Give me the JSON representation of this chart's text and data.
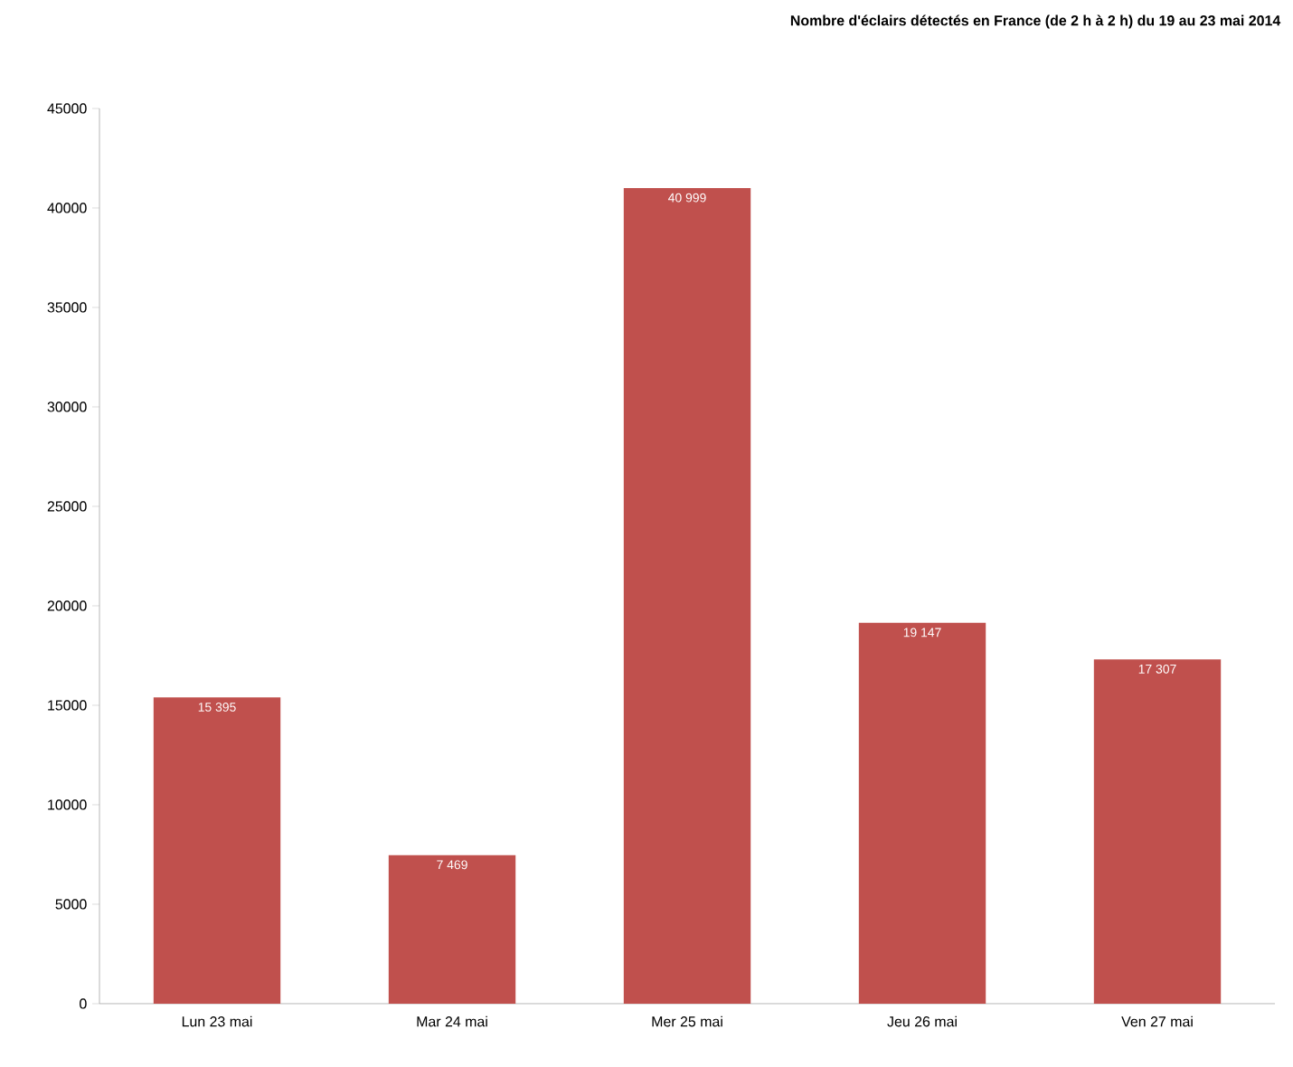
{
  "chart_data": {
    "type": "bar",
    "title": "Nombre d'éclairs détectés en France (de 2 h à 2 h) du 19 au 23 mai 2014",
    "categories": [
      "Lun 23 mai",
      "Mar 24 mai",
      "Mer 25 mai",
      "Jeu 26 mai",
      "Ven 27 mai"
    ],
    "values": [
      15395,
      7469,
      40999,
      19147,
      17307
    ],
    "value_labels": [
      "15 395",
      "7 469",
      "40 999",
      "19 147",
      "17 307"
    ],
    "color": "#c0504d",
    "ylim": [
      0,
      45000
    ],
    "yticks": [
      0,
      5000,
      10000,
      15000,
      20000,
      25000,
      30000,
      35000,
      40000,
      45000
    ]
  }
}
